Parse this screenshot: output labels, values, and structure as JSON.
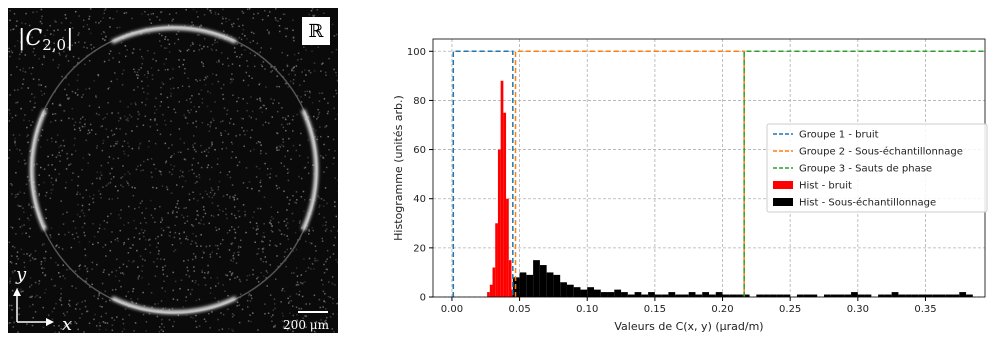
{
  "image": {
    "label": [
      "|C",
      "2,0",
      "|"
    ],
    "field_symbol": "ℝ",
    "y_axis": "y",
    "x_axis": "x",
    "scale_bar": "200 μm"
  },
  "chart_data": {
    "type": "combo",
    "xlabel": "Valeurs de C(x, y)  (μrad/m)",
    "ylabel": "Histogramme  (unités arb.)",
    "xlim": [
      -0.014,
      0.394
    ],
    "ylim": [
      0,
      105
    ],
    "xticks": [
      {
        "value": 0,
        "label": "0.00"
      },
      {
        "value": 0.05,
        "label": "0.05"
      },
      {
        "value": 0.1,
        "label": "0.10"
      },
      {
        "value": 0.15,
        "label": "0.15"
      },
      {
        "value": 0.2,
        "label": "0.20"
      },
      {
        "value": 0.25,
        "label": "0.25"
      },
      {
        "value": 0.3,
        "label": "0.30"
      },
      {
        "value": 0.35,
        "label": "0.35"
      }
    ],
    "yticks": [
      0,
      20,
      40,
      60,
      80,
      100
    ],
    "grid": true,
    "legend": "right",
    "series": [
      {
        "type": "line",
        "name": "Groupe 1 - bruit",
        "color": "#1f77b4",
        "x": [
          0.001,
          0.001,
          0.045,
          0.045
        ],
        "values": [
          0,
          100,
          100,
          0
        ]
      },
      {
        "type": "line",
        "name": "Groupe 2 - Sous-échantillonnage",
        "color": "#ff7f0e",
        "x": [
          0.047,
          0.047,
          0.216,
          0.216
        ],
        "values": [
          0,
          100,
          100,
          0
        ]
      },
      {
        "type": "line",
        "name": "Groupe 3 - Sauts de phase",
        "color": "#2ca02c",
        "x": [
          0.216,
          0.216,
          0.394
        ],
        "values": [
          0,
          100,
          100
        ]
      },
      {
        "type": "histogram",
        "name": "Hist - bruit",
        "color": "#ff0000",
        "bins": [
          0.026,
          0.028,
          0.03,
          0.032,
          0.034,
          0.036,
          0.038,
          0.04,
          0.042,
          0.044,
          0.046
        ],
        "values": [
          2,
          5,
          12,
          30,
          60,
          88,
          75,
          40,
          15,
          3
        ]
      },
      {
        "type": "histogram",
        "name": "Hist - Sous-échantillonnage",
        "color": "#000000",
        "bins": [
          0.045,
          0.05,
          0.055,
          0.06,
          0.065,
          0.07,
          0.075,
          0.08,
          0.085,
          0.09,
          0.095,
          0.1,
          0.105,
          0.11,
          0.115,
          0.12,
          0.125,
          0.13,
          0.135,
          0.14,
          0.145,
          0.15,
          0.155,
          0.16,
          0.165,
          0.17,
          0.175,
          0.18,
          0.185,
          0.19,
          0.195,
          0.2,
          0.205,
          0.21,
          0.215,
          0.22,
          0.225,
          0.23,
          0.235,
          0.24,
          0.245,
          0.25,
          0.255,
          0.26,
          0.265,
          0.27,
          0.275,
          0.28,
          0.285,
          0.29,
          0.295,
          0.3,
          0.305,
          0.31,
          0.315,
          0.32,
          0.325,
          0.33,
          0.335,
          0.34,
          0.345,
          0.35,
          0.355,
          0.36,
          0.365,
          0.37,
          0.375,
          0.38,
          0.385
        ],
        "values": [
          8,
          10,
          9,
          15,
          13,
          10,
          9,
          6,
          5,
          4,
          3,
          4,
          3,
          2,
          2,
          3,
          2,
          1,
          2,
          1,
          2,
          1,
          1,
          2,
          1,
          1,
          2,
          1,
          2,
          1,
          2,
          1,
          1,
          1,
          1,
          0,
          1,
          1,
          1,
          1,
          1,
          0,
          1,
          1,
          1,
          0,
          1,
          1,
          1,
          1,
          2,
          1,
          1,
          0,
          1,
          1,
          2,
          1,
          1,
          1,
          1,
          1,
          1,
          1,
          1,
          1,
          2,
          1
        ]
      }
    ]
  }
}
